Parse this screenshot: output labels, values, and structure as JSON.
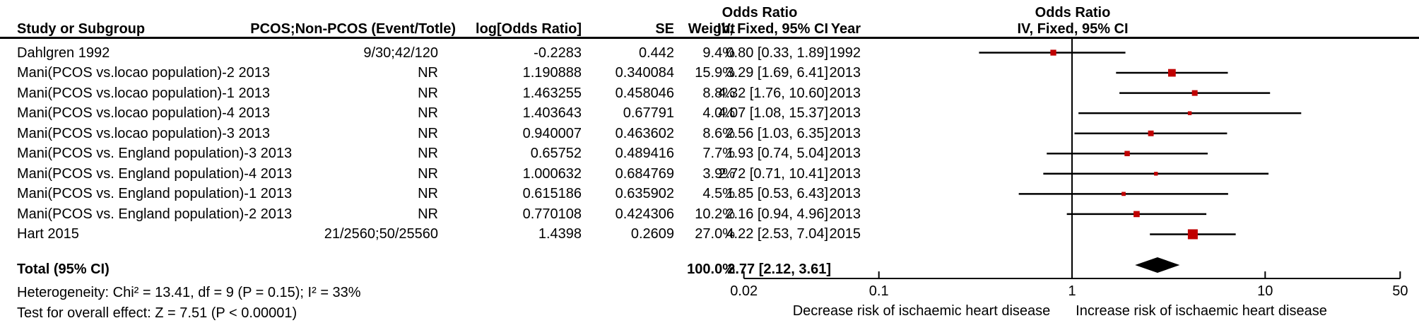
{
  "header": {
    "or_title_left": "Odds Ratio",
    "study": "Study or Subgroup",
    "events": "PCOS;Non-PCOS (Event/Totle)",
    "log_or": "log[Odds Ratio]",
    "se": "SE",
    "weight": "Weight",
    "ci": "IV, Fixed, 95% CI",
    "year": "Year",
    "plot_title_line1": "Odds Ratio",
    "plot_title_line2": "IV, Fixed, 95% CI"
  },
  "chart_data": {
    "type": "forest",
    "x_scale": "log",
    "x_range": [
      0.02,
      50
    ],
    "x_ticks": [
      0.02,
      0.1,
      1,
      10,
      50
    ],
    "x_tick_labels": [
      "0.02",
      "0.1",
      "1",
      "10",
      "50"
    ],
    "zero_effect_line": 1,
    "axis_label_left": "Decrease risk of ischaemic heart disease",
    "axis_label_right": "Increase risk of ischaemic heart disease",
    "studies": [
      {
        "name": "Dahlgren 1992",
        "events": "9/30;42/120",
        "log_or": "-0.2283",
        "se": "0.442",
        "weight": "9.4%",
        "weight_pct": 9.4,
        "or": 0.8,
        "ci_low": 0.33,
        "ci_high": 1.89,
        "ci_text": "0.80 [0.33, 1.89]",
        "year": "1992"
      },
      {
        "name": "Mani(PCOS vs.locao population)-2 2013",
        "events": "NR",
        "log_or": "1.190888",
        "se": "0.340084",
        "weight": "15.9%",
        "weight_pct": 15.9,
        "or": 3.29,
        "ci_low": 1.69,
        "ci_high": 6.41,
        "ci_text": "3.29 [1.69, 6.41]",
        "year": "2013"
      },
      {
        "name": "Mani(PCOS vs.locao population)-1 2013",
        "events": "NR",
        "log_or": "1.463255",
        "se": "0.458046",
        "weight": "8.8%",
        "weight_pct": 8.8,
        "or": 4.32,
        "ci_low": 1.76,
        "ci_high": 10.6,
        "ci_text": "4.32 [1.76, 10.60]",
        "year": "2013"
      },
      {
        "name": "Mani(PCOS vs.locao population)-4 2013",
        "events": "NR",
        "log_or": "1.403643",
        "se": "0.67791",
        "weight": "4.0%",
        "weight_pct": 4.0,
        "or": 4.07,
        "ci_low": 1.08,
        "ci_high": 15.37,
        "ci_text": "4.07 [1.08, 15.37]",
        "year": "2013"
      },
      {
        "name": "Mani(PCOS vs.locao population)-3 2013",
        "events": "NR",
        "log_or": "0.940007",
        "se": "0.463602",
        "weight": "8.6%",
        "weight_pct": 8.6,
        "or": 2.56,
        "ci_low": 1.03,
        "ci_high": 6.35,
        "ci_text": "2.56 [1.03, 6.35]",
        "year": "2013"
      },
      {
        "name": "Mani(PCOS vs. England population)-3 2013",
        "events": "NR",
        "log_or": "0.65752",
        "se": "0.489416",
        "weight": "7.7%",
        "weight_pct": 7.7,
        "or": 1.93,
        "ci_low": 0.74,
        "ci_high": 5.04,
        "ci_text": "1.93 [0.74, 5.04]",
        "year": "2013"
      },
      {
        "name": "Mani(PCOS vs. England population)-4 2013",
        "events": "NR",
        "log_or": "1.000632",
        "se": "0.684769",
        "weight": "3.9%",
        "weight_pct": 3.9,
        "or": 2.72,
        "ci_low": 0.71,
        "ci_high": 10.41,
        "ci_text": "2.72 [0.71, 10.41]",
        "year": "2013"
      },
      {
        "name": "Mani(PCOS vs. England population)-1 2013",
        "events": "NR",
        "log_or": "0.615186",
        "se": "0.635902",
        "weight": "4.5%",
        "weight_pct": 4.5,
        "or": 1.85,
        "ci_low": 0.53,
        "ci_high": 6.43,
        "ci_text": "1.85 [0.53, 6.43]",
        "year": "2013"
      },
      {
        "name": "Mani(PCOS vs. England population)-2 2013",
        "events": "NR",
        "log_or": "0.770108",
        "se": "0.424306",
        "weight": "10.2%",
        "weight_pct": 10.2,
        "or": 2.16,
        "ci_low": 0.94,
        "ci_high": 4.96,
        "ci_text": "2.16 [0.94, 4.96]",
        "year": "2013"
      },
      {
        "name": "Hart 2015",
        "events": "21/2560;50/25560",
        "log_or": "1.4398",
        "se": "0.2609",
        "weight": "27.0%",
        "weight_pct": 27.0,
        "or": 4.22,
        "ci_low": 2.53,
        "ci_high": 7.04,
        "ci_text": "4.22 [2.53, 7.04]",
        "year": "2015"
      }
    ],
    "total": {
      "label": "Total (95% CI)",
      "weight": "100.0%",
      "or": 2.77,
      "ci_low": 2.12,
      "ci_high": 3.61,
      "ci_text": "2.77 [2.12, 3.61]"
    },
    "heterogeneity": "Heterogeneity: Chi² = 13.41, df = 9 (P = 0.15); I² = 33%",
    "overall_effect": "Test for overall effect: Z = 7.51 (P < 0.00001)"
  },
  "colors": {
    "marker": "#c00000",
    "line": "#000000",
    "diamond": "#000000"
  }
}
